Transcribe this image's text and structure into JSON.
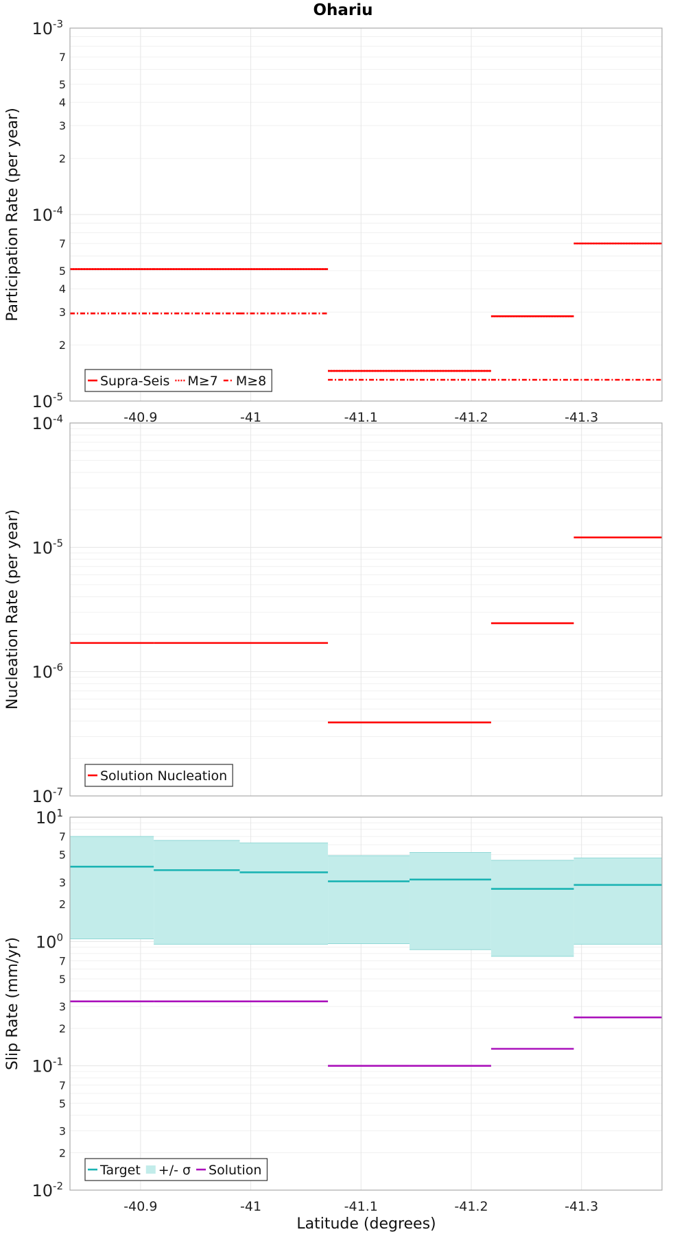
{
  "chart_data": [
    {
      "type": "line",
      "title": "Ohariu",
      "xlabel": "",
      "ylabel": "Participation Rate (per year)",
      "yscale": "log",
      "xlim": [
        -40.836,
        -41.373
      ],
      "ylim": [
        1e-05,
        0.001
      ],
      "x_ticks": [
        {
          "label": "-40.9",
          "value": -40.9
        },
        {
          "label": "-41",
          "value": -41.0
        },
        {
          "label": "-41.1",
          "value": -41.1
        },
        {
          "label": "-41.2",
          "value": -41.2
        },
        {
          "label": "-41.3",
          "value": -41.3
        }
      ],
      "y_major_labels": {
        "base": "10",
        "exponents": [
          "-5",
          "-4",
          "-3"
        ]
      },
      "y_minor_labels": [
        "2",
        "3",
        "4",
        "5",
        "7"
      ],
      "grid": true,
      "legend_position": "bottom-left",
      "series": [
        {
          "name": "Supra-Seis",
          "style": "solid",
          "color": "#ff0000",
          "segments": [
            {
              "x0": -40.836,
              "x1": -40.912,
              "y": 5.1e-05
            },
            {
              "x0": -40.912,
              "x1": -40.99,
              "y": 5.1e-05
            },
            {
              "x0": -40.99,
              "x1": -41.07,
              "y": 5.1e-05
            },
            {
              "x0": -41.07,
              "x1": -41.144,
              "y": 1.45e-05
            },
            {
              "x0": -41.144,
              "x1": -41.218,
              "y": 1.45e-05
            },
            {
              "x0": -41.218,
              "x1": -41.293,
              "y": 2.85e-05
            },
            {
              "x0": -41.293,
              "x1": -41.373,
              "y": 7e-05
            }
          ]
        },
        {
          "name": "M≥7",
          "style": "dotted",
          "color": "#ff0000",
          "segments": [
            {
              "x0": -40.836,
              "x1": -40.912,
              "y": 5.1e-05
            },
            {
              "x0": -40.912,
              "x1": -40.99,
              "y": 5.1e-05
            },
            {
              "x0": -40.99,
              "x1": -41.07,
              "y": 5.1e-05
            },
            {
              "x0": -41.07,
              "x1": -41.144,
              "y": 1.45e-05
            },
            {
              "x0": -41.144,
              "x1": -41.218,
              "y": 1.45e-05
            },
            {
              "x0": -41.218,
              "x1": -41.293,
              "y": 2.85e-05
            },
            {
              "x0": -41.293,
              "x1": -41.373,
              "y": 7e-05
            }
          ]
        },
        {
          "name": "M≥8",
          "style": "dashdot",
          "color": "#ff0000",
          "segments": [
            {
              "x0": -40.836,
              "x1": -40.912,
              "y": 2.95e-05
            },
            {
              "x0": -40.912,
              "x1": -40.99,
              "y": 2.95e-05
            },
            {
              "x0": -40.99,
              "x1": -41.07,
              "y": 2.95e-05
            },
            {
              "x0": -41.07,
              "x1": -41.144,
              "y": 1.3e-05
            },
            {
              "x0": -41.144,
              "x1": -41.218,
              "y": 1.3e-05
            },
            {
              "x0": -41.218,
              "x1": -41.293,
              "y": 1.3e-05
            },
            {
              "x0": -41.293,
              "x1": -41.373,
              "y": 1.3e-05
            }
          ]
        }
      ]
    },
    {
      "type": "line",
      "title": "",
      "xlabel": "",
      "ylabel": "Nucleation Rate (per year)",
      "yscale": "log",
      "xlim": [
        -40.836,
        -41.373
      ],
      "ylim": [
        1e-07,
        0.0001
      ],
      "x_ticks": [],
      "y_major_labels": {
        "base": "10",
        "exponents": [
          "-7",
          "-6",
          "-5",
          "-4"
        ]
      },
      "y_minor_labels": [],
      "grid": true,
      "legend_position": "bottom-left",
      "series": [
        {
          "name": "Solution Nucleation",
          "style": "solid",
          "color": "#ff0000",
          "segments": [
            {
              "x0": -40.836,
              "x1": -40.912,
              "y": 1.7e-06
            },
            {
              "x0": -40.912,
              "x1": -40.99,
              "y": 1.7e-06
            },
            {
              "x0": -40.99,
              "x1": -41.07,
              "y": 1.7e-06
            },
            {
              "x0": -41.07,
              "x1": -41.144,
              "y": 3.9e-07
            },
            {
              "x0": -41.144,
              "x1": -41.218,
              "y": 3.9e-07
            },
            {
              "x0": -41.218,
              "x1": -41.293,
              "y": 2.45e-06
            },
            {
              "x0": -41.293,
              "x1": -41.373,
              "y": 1.2e-05
            }
          ]
        }
      ]
    },
    {
      "type": "line",
      "title": "",
      "xlabel": "Latitude (degrees)",
      "ylabel": "Slip Rate (mm/yr)",
      "yscale": "log",
      "xlim": [
        -40.836,
        -41.373
      ],
      "ylim": [
        0.01,
        10
      ],
      "x_ticks": [
        {
          "label": "-40.9",
          "value": -40.9
        },
        {
          "label": "-41",
          "value": -41.0
        },
        {
          "label": "-41.1",
          "value": -41.1
        },
        {
          "label": "-41.2",
          "value": -41.2
        },
        {
          "label": "-41.3",
          "value": -41.3
        }
      ],
      "y_major_labels": {
        "base": "10",
        "exponents": [
          "-2",
          "-1",
          "0",
          "1"
        ]
      },
      "y_minor_labels": [
        "2",
        "3",
        "5",
        "7"
      ],
      "grid": true,
      "legend_position": "bottom-left",
      "band": {
        "name": "+/- σ",
        "color": "#c2ecea",
        "segments": [
          {
            "x0": -40.836,
            "x1": -40.912,
            "low": 1.05,
            "high": 7.0
          },
          {
            "x0": -40.912,
            "x1": -40.99,
            "low": 0.95,
            "high": 6.5
          },
          {
            "x0": -40.99,
            "x1": -41.07,
            "low": 0.95,
            "high": 6.2
          },
          {
            "x0": -41.07,
            "x1": -41.144,
            "low": 0.96,
            "high": 4.9
          },
          {
            "x0": -41.144,
            "x1": -41.218,
            "low": 0.86,
            "high": 5.2
          },
          {
            "x0": -41.218,
            "x1": -41.293,
            "low": 0.76,
            "high": 4.5
          },
          {
            "x0": -41.293,
            "x1": -41.373,
            "low": 0.95,
            "high": 4.7
          }
        ]
      },
      "series": [
        {
          "name": "Target",
          "style": "solid",
          "color": "#1ab3b3",
          "segments": [
            {
              "x0": -40.836,
              "x1": -40.912,
              "y": 4.0
            },
            {
              "x0": -40.912,
              "x1": -40.99,
              "y": 3.75
            },
            {
              "x0": -40.99,
              "x1": -41.07,
              "y": 3.6
            },
            {
              "x0": -41.07,
              "x1": -41.144,
              "y": 3.05
            },
            {
              "x0": -41.144,
              "x1": -41.218,
              "y": 3.15
            },
            {
              "x0": -41.218,
              "x1": -41.293,
              "y": 2.65
            },
            {
              "x0": -41.293,
              "x1": -41.373,
              "y": 2.85
            }
          ]
        },
        {
          "name": "Solution",
          "style": "solid",
          "color": "#aa11bb",
          "segments": [
            {
              "x0": -40.836,
              "x1": -40.912,
              "y": 0.33
            },
            {
              "x0": -40.912,
              "x1": -40.99,
              "y": 0.33
            },
            {
              "x0": -40.99,
              "x1": -41.07,
              "y": 0.33
            },
            {
              "x0": -41.07,
              "x1": -41.144,
              "y": 0.1
            },
            {
              "x0": -41.144,
              "x1": -41.218,
              "y": 0.1
            },
            {
              "x0": -41.218,
              "x1": -41.293,
              "y": 0.137
            },
            {
              "x0": -41.293,
              "x1": -41.373,
              "y": 0.245
            }
          ]
        }
      ]
    }
  ]
}
